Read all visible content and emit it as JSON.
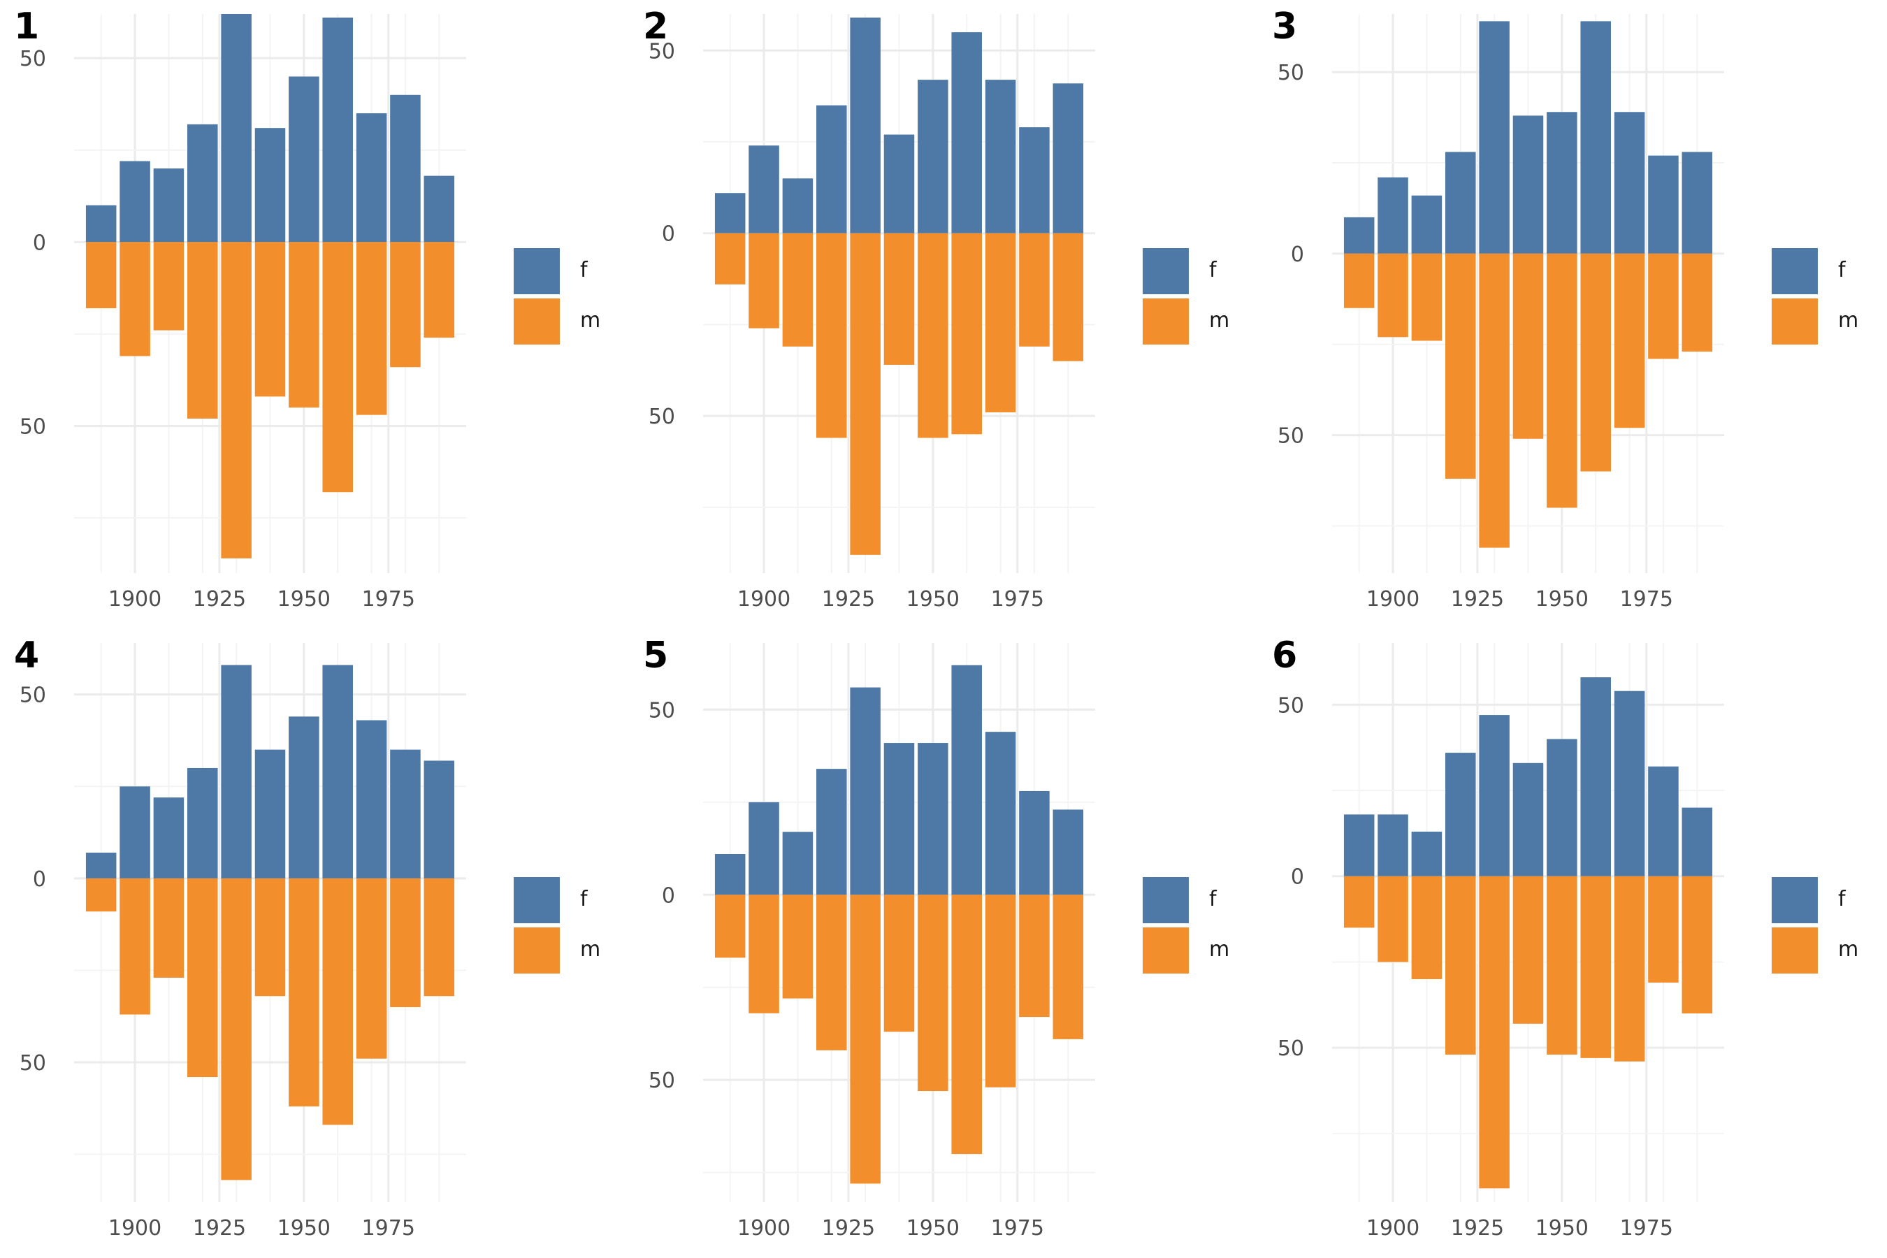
{
  "colors": {
    "f": "#4E79A7",
    "m": "#F28E2B",
    "grid_major": "#EBEBEB",
    "grid_minor": "#F4F4F4"
  },
  "legend": [
    {
      "key": "f",
      "label": "f"
    },
    {
      "key": "m",
      "label": "m"
    }
  ],
  "chart_data": [
    {
      "type": "bar",
      "tag": "1",
      "x": [
        1890,
        1900,
        1910,
        1920,
        1930,
        1940,
        1950,
        1960,
        1970,
        1980,
        1990
      ],
      "x_ticks": [
        "1900",
        "1925",
        "1950",
        "1975"
      ],
      "y_ticks": [
        "50",
        "0",
        "50"
      ],
      "y_tick_values": [
        50,
        0,
        -50
      ],
      "ylim": [
        -90,
        62
      ],
      "series": [
        {
          "name": "f",
          "values": [
            10,
            22,
            20,
            32,
            62,
            31,
            45,
            61,
            35,
            40,
            18
          ]
        },
        {
          "name": "m",
          "values": [
            -18,
            -31,
            -24,
            -48,
            -86,
            -42,
            -45,
            -68,
            -47,
            -34,
            -26
          ]
        }
      ]
    },
    {
      "type": "bar",
      "tag": "2",
      "x": [
        1890,
        1900,
        1910,
        1920,
        1930,
        1940,
        1950,
        1960,
        1970,
        1980,
        1990
      ],
      "x_ticks": [
        "1900",
        "1925",
        "1950",
        "1975"
      ],
      "y_ticks": [
        "50",
        "0",
        "50"
      ],
      "y_tick_values": [
        50,
        0,
        -50
      ],
      "ylim": [
        -93,
        60
      ],
      "series": [
        {
          "name": "f",
          "values": [
            11,
            24,
            15,
            35,
            59,
            27,
            42,
            55,
            42,
            29,
            41
          ]
        },
        {
          "name": "m",
          "values": [
            -14,
            -26,
            -31,
            -56,
            -88,
            -36,
            -56,
            -55,
            -49,
            -31,
            -35
          ]
        }
      ]
    },
    {
      "type": "bar",
      "tag": "3",
      "x": [
        1890,
        1900,
        1910,
        1920,
        1930,
        1940,
        1950,
        1960,
        1970,
        1980,
        1990
      ],
      "x_ticks": [
        "1900",
        "1925",
        "1950",
        "1975"
      ],
      "y_ticks": [
        "50",
        "0",
        "50"
      ],
      "y_tick_values": [
        50,
        0,
        -50
      ],
      "ylim": [
        -88,
        66
      ],
      "series": [
        {
          "name": "f",
          "values": [
            10,
            21,
            16,
            28,
            64,
            38,
            39,
            64,
            39,
            27,
            28
          ]
        },
        {
          "name": "m",
          "values": [
            -15,
            -23,
            -24,
            -62,
            -81,
            -51,
            -70,
            -60,
            -48,
            -29,
            -27
          ]
        }
      ]
    },
    {
      "type": "bar",
      "tag": "4",
      "x": [
        1890,
        1900,
        1910,
        1920,
        1930,
        1940,
        1950,
        1960,
        1970,
        1980,
        1990
      ],
      "x_ticks": [
        "1900",
        "1925",
        "1950",
        "1975"
      ],
      "y_ticks": [
        "50",
        "0",
        "50"
      ],
      "y_tick_values": [
        50,
        0,
        -50
      ],
      "ylim": [
        -88,
        64
      ],
      "series": [
        {
          "name": "f",
          "values": [
            7,
            25,
            22,
            30,
            58,
            35,
            44,
            58,
            43,
            35,
            32
          ]
        },
        {
          "name": "m",
          "values": [
            -9,
            -37,
            -27,
            -54,
            -82,
            -32,
            -62,
            -67,
            -49,
            -35,
            -32
          ]
        }
      ]
    },
    {
      "type": "bar",
      "tag": "5",
      "x": [
        1890,
        1900,
        1910,
        1920,
        1930,
        1940,
        1950,
        1960,
        1970,
        1980,
        1990
      ],
      "x_ticks": [
        "1900",
        "1925",
        "1950",
        "1975"
      ],
      "y_ticks": [
        "50",
        "0",
        "50"
      ],
      "y_tick_values": [
        50,
        0,
        -50
      ],
      "ylim": [
        -83,
        68
      ],
      "series": [
        {
          "name": "f",
          "values": [
            11,
            25,
            17,
            34,
            56,
            41,
            41,
            62,
            44,
            28,
            23
          ]
        },
        {
          "name": "m",
          "values": [
            -17,
            -32,
            -28,
            -42,
            -78,
            -37,
            -53,
            -70,
            -52,
            -33,
            -39
          ]
        }
      ]
    },
    {
      "type": "bar",
      "tag": "6",
      "x": [
        1890,
        1900,
        1910,
        1920,
        1930,
        1940,
        1950,
        1960,
        1970,
        1980,
        1990
      ],
      "x_ticks": [
        "1900",
        "1925",
        "1950",
        "1975"
      ],
      "y_ticks": [
        "50",
        "0",
        "50"
      ],
      "y_tick_values": [
        50,
        0,
        -50
      ],
      "ylim": [
        -95,
        68
      ],
      "series": [
        {
          "name": "f",
          "values": [
            18,
            18,
            13,
            36,
            47,
            33,
            40,
            58,
            54,
            32,
            20
          ]
        },
        {
          "name": "m",
          "values": [
            -15,
            -25,
            -30,
            -52,
            -91,
            -43,
            -52,
            -53,
            -54,
            -31,
            -40
          ]
        }
      ]
    }
  ]
}
